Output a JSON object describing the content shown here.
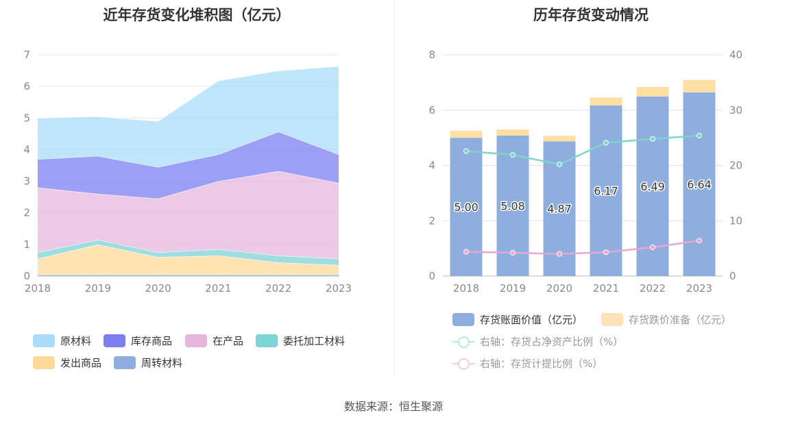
{
  "left": {
    "title": "近年存货变化堆积图（亿元）",
    "legend": [
      {
        "name": "原材料",
        "color": "#a9dcf8"
      },
      {
        "name": "库存商品",
        "color": "#7b7ff0"
      },
      {
        "name": "在产品",
        "color": "#e6b7db"
      },
      {
        "name": "委托加工材料",
        "color": "#7ed3d6"
      },
      {
        "name": "发出商品",
        "color": "#ffd99a"
      },
      {
        "name": "周转材料",
        "color": "#8eaedd"
      }
    ]
  },
  "right": {
    "title": "历年存货变动情况",
    "legend": [
      {
        "name": "存货账面价值（亿元）",
        "color": "#8eaedd"
      },
      {
        "name": "存货跌价准备（亿元）",
        "color": "#ffe3b8"
      },
      {
        "name": "右轴：存货占净资产比例（%）",
        "color": "#96dcd8"
      },
      {
        "name": "右轴：存货计提比例（%）",
        "color": "#f0b4da"
      }
    ]
  },
  "source": "数据来源：恒生聚源",
  "chart_data": [
    {
      "type": "area",
      "stacked": true,
      "title": "近年存货变化堆积图（亿元）",
      "x": [
        "2018",
        "2019",
        "2020",
        "2021",
        "2022",
        "2023"
      ],
      "ylim": [
        0,
        7
      ],
      "yticks": [
        0,
        1,
        2,
        3,
        4,
        5,
        6,
        7
      ],
      "grid": true,
      "legend_position": "bottom",
      "series": [
        {
          "name": "周转材料",
          "color": "#8eaedd",
          "values": [
            0.05,
            0.05,
            0.05,
            0.05,
            0.05,
            0.05
          ]
        },
        {
          "name": "发出商品",
          "color": "#ffd99a",
          "values": [
            0.5,
            0.95,
            0.55,
            0.6,
            0.38,
            0.3
          ]
        },
        {
          "name": "委托加工材料",
          "color": "#7ed3d6",
          "values": [
            0.2,
            0.15,
            0.15,
            0.2,
            0.22,
            0.2
          ]
        },
        {
          "name": "在产品",
          "color": "#e6b7db",
          "values": [
            2.05,
            1.45,
            1.7,
            2.15,
            2.67,
            2.4
          ]
        },
        {
          "name": "库存商品",
          "color": "#7b7ff0",
          "values": [
            0.9,
            1.2,
            1.0,
            0.85,
            1.25,
            0.9
          ]
        },
        {
          "name": "原材料",
          "color": "#a9dcf8",
          "values": [
            1.3,
            1.25,
            1.45,
            2.33,
            1.93,
            2.79
          ]
        }
      ]
    },
    {
      "type": "bar",
      "stacked": true,
      "title": "历年存货变动情况",
      "categories": [
        "2018",
        "2019",
        "2020",
        "2021",
        "2022",
        "2023"
      ],
      "ylim": [
        0,
        8
      ],
      "yticks": [
        0,
        2,
        4,
        6,
        8
      ],
      "y2lim": [
        0,
        40
      ],
      "y2ticks": [
        0,
        10,
        20,
        30,
        40
      ],
      "grid": true,
      "legend_position": "bottom",
      "series": [
        {
          "name": "存货账面价值（亿元）",
          "color": "#8eaedd",
          "axis": "left",
          "type": "bar",
          "values": [
            5.0,
            5.08,
            4.87,
            6.17,
            6.49,
            6.64
          ],
          "labels": [
            "5.00",
            "5.08",
            "4.87",
            "6.17",
            "6.49",
            "6.64"
          ]
        },
        {
          "name": "存货跌价准备（亿元）",
          "color": "#ffdfa3",
          "axis": "left",
          "type": "bar",
          "values": [
            0.25,
            0.22,
            0.2,
            0.28,
            0.35,
            0.45
          ]
        },
        {
          "name": "右轴：存货占净资产比例（%）",
          "color": "#7fd4cf",
          "axis": "right",
          "type": "line",
          "values": [
            22.6,
            21.9,
            20.2,
            24.1,
            24.8,
            25.4
          ]
        },
        {
          "name": "右轴：存货计提比例（%）",
          "color": "#eaa6d3",
          "axis": "right",
          "type": "line",
          "values": [
            4.4,
            4.2,
            4.0,
            4.3,
            5.2,
            6.4
          ]
        }
      ]
    }
  ]
}
